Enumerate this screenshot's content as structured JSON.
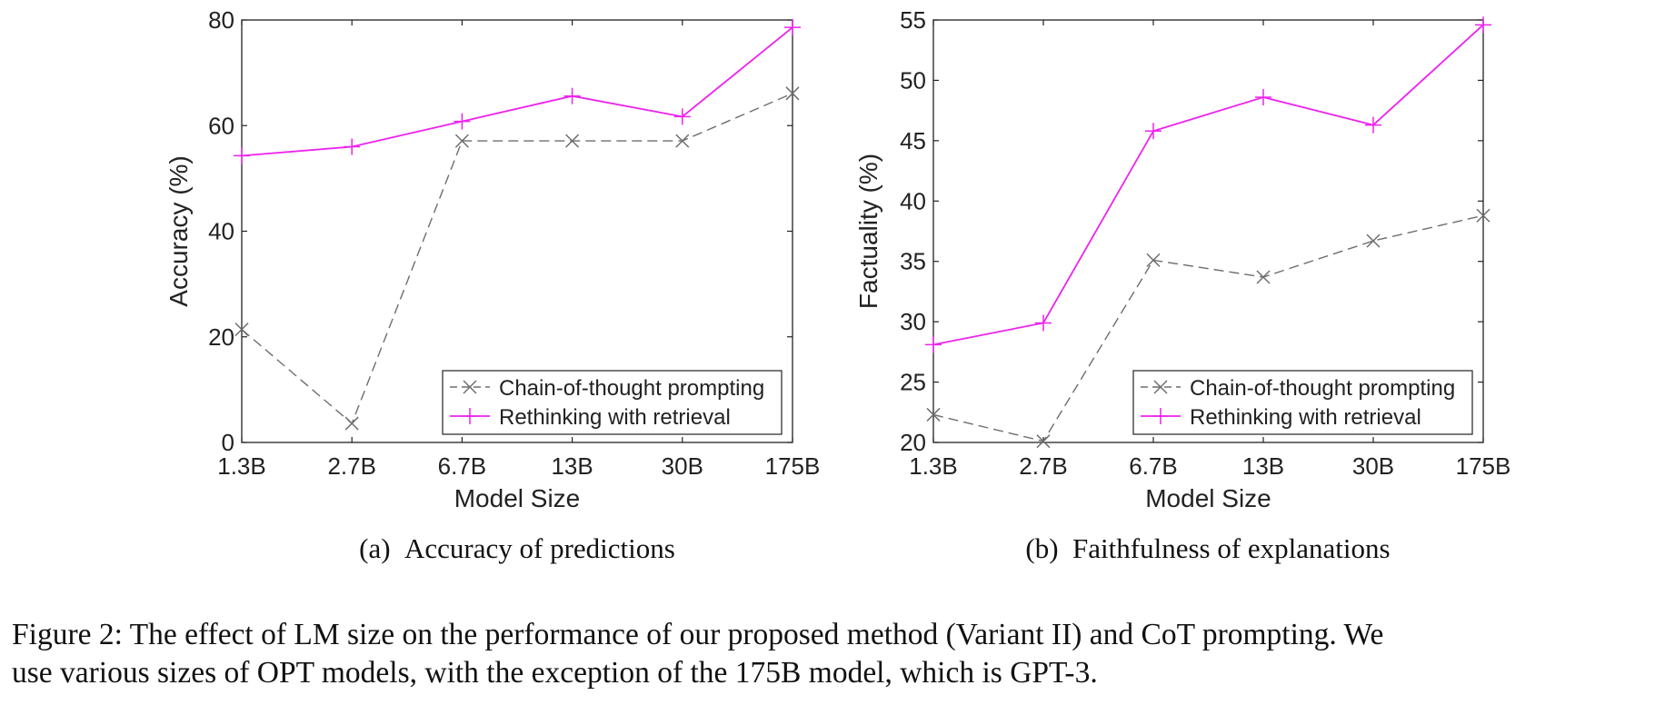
{
  "chart_data": [
    {
      "type": "line",
      "title": "",
      "subcaption_label": "(a)",
      "subcaption_text": "Accuracy of predictions",
      "xlabel": "Model Size",
      "ylabel": "Accuracy (%)",
      "categories": [
        "1.3B",
        "2.7B",
        "6.7B",
        "13B",
        "30B",
        "175B"
      ],
      "ylim": [
        0,
        80
      ],
      "yticks": [
        0,
        20,
        40,
        60,
        80
      ],
      "grid": false,
      "legend_position": "bottom-right",
      "series": [
        {
          "name": "Chain-of-thought prompting",
          "values": [
            21.4,
            3.6,
            57.1,
            57.1,
            57.1,
            66.1
          ],
          "color": "#6e6e6e",
          "marker": "x",
          "dash": true
        },
        {
          "name": "Rethinking with retrieval",
          "values": [
            54.3,
            56.0,
            60.8,
            65.6,
            61.7,
            78.6
          ],
          "color": "#ee22ee",
          "marker": "+",
          "dash": false
        }
      ]
    },
    {
      "type": "line",
      "title": "",
      "subcaption_label": "(b)",
      "subcaption_text": "Faithfulness of explanations",
      "xlabel": "Model Size",
      "ylabel": "Factuality (%)",
      "categories": [
        "1.3B",
        "2.7B",
        "6.7B",
        "13B",
        "30B",
        "175B"
      ],
      "ylim": [
        20,
        55
      ],
      "yticks": [
        20,
        25,
        30,
        35,
        40,
        45,
        50,
        55
      ],
      "grid": false,
      "legend_position": "bottom-right",
      "series": [
        {
          "name": "Chain-of-thought prompting",
          "values": [
            22.3,
            20.1,
            35.1,
            33.7,
            36.7,
            38.8
          ],
          "color": "#6e6e6e",
          "marker": "x",
          "dash": true
        },
        {
          "name": "Rethinking with retrieval",
          "values": [
            28.1,
            29.9,
            45.8,
            48.6,
            46.3,
            54.6
          ],
          "color": "#ee22ee",
          "marker": "+",
          "dash": false
        }
      ]
    }
  ],
  "caption": {
    "line1": "Figure 2: The effect of LM size on the performance of our proposed method (Variant II) and CoT prompting. We",
    "line2": "use various sizes of OPT models, with the exception of the 175B model, which is GPT-3."
  }
}
